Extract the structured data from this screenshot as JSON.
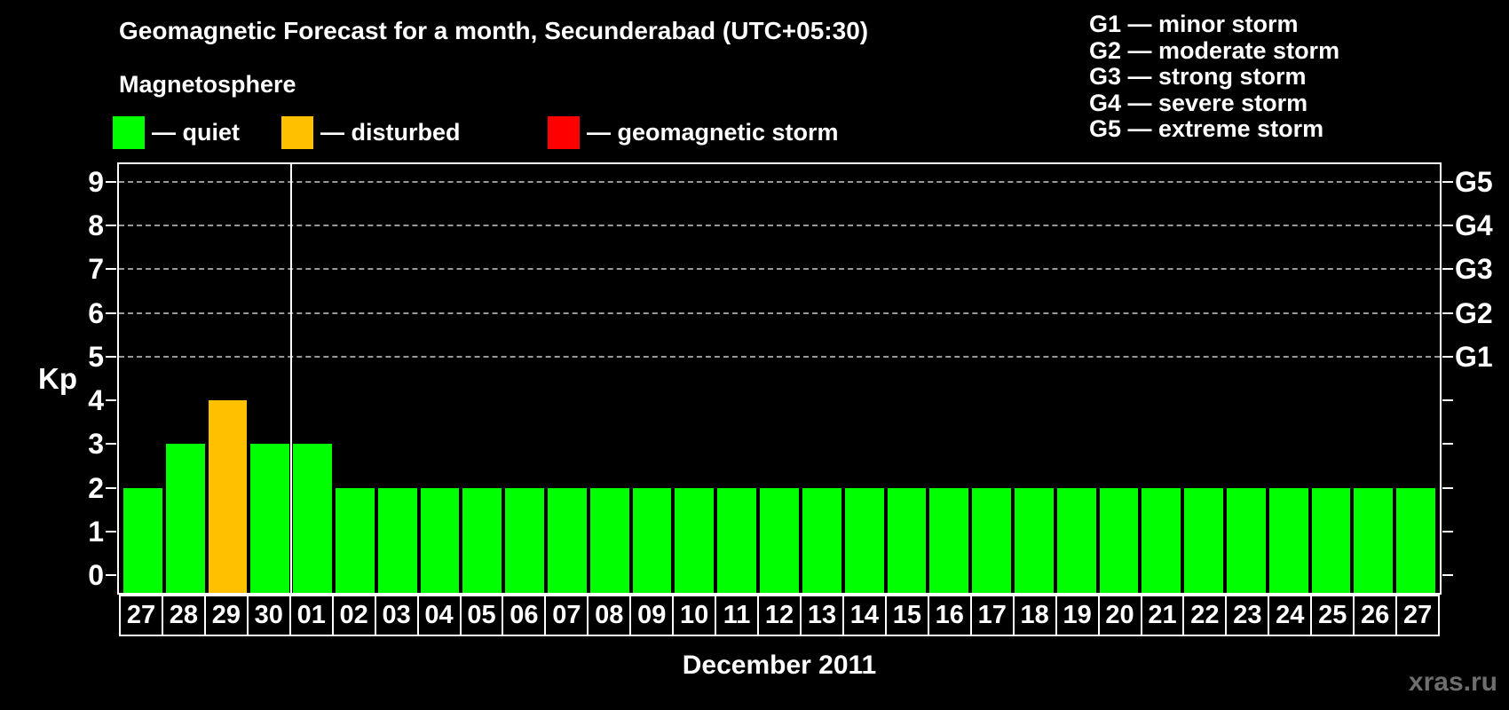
{
  "title": "Geomagnetic Forecast for a month, Secunderabad (UTC+05:30)",
  "subtitle": "Magnetosphere",
  "magnetosphere_legend": [
    {
      "key": "quiet",
      "label": "— quiet",
      "color": "#00ff00"
    },
    {
      "key": "disturbed",
      "label": "— disturbed",
      "color": "#ffc000"
    },
    {
      "key": "storm",
      "label": "— geomagnetic storm",
      "color": "#ff0000"
    }
  ],
  "g_scale_legend": [
    "G1 — minor storm",
    "G2 — moderate storm",
    "G3 — strong storm",
    "G4 — severe storm",
    "G5 — extreme storm"
  ],
  "watermark": "xras.ru",
  "chart_data": {
    "type": "bar",
    "title": "Geomagnetic Forecast for a month, Secunderabad (UTC+05:30)",
    "xlabel": "December 2011",
    "ylabel": "Kp",
    "ylim": [
      -0.4,
      9.4
    ],
    "yticks": [
      0,
      1,
      2,
      3,
      4,
      5,
      6,
      7,
      8,
      9
    ],
    "gridlines_at": [
      5,
      6,
      7,
      8,
      9
    ],
    "grid": "horizontal dashed at Kp 5-9",
    "legend_position": "top",
    "right_axis": [
      {
        "label": "G1",
        "kp": 5
      },
      {
        "label": "G2",
        "kp": 6
      },
      {
        "label": "G3",
        "kp": 7
      },
      {
        "label": "G4",
        "kp": 8
      },
      {
        "label": "G5",
        "kp": 9
      }
    ],
    "categories": [
      "27",
      "28",
      "29",
      "30",
      "01",
      "02",
      "03",
      "04",
      "05",
      "06",
      "07",
      "08",
      "09",
      "10",
      "11",
      "12",
      "13",
      "14",
      "15",
      "16",
      "17",
      "18",
      "19",
      "20",
      "21",
      "22",
      "23",
      "24",
      "25",
      "26",
      "27"
    ],
    "values": [
      2,
      3,
      4,
      3,
      3,
      2,
      2,
      2,
      2,
      2,
      2,
      2,
      2,
      2,
      2,
      2,
      2,
      2,
      2,
      2,
      2,
      2,
      2,
      2,
      2,
      2,
      2,
      2,
      2,
      2,
      2
    ],
    "bar_color_rule": {
      "quiet_max": 3,
      "disturbed": 4,
      "storm_min": 5
    },
    "month_separator_after_index": 3
  }
}
